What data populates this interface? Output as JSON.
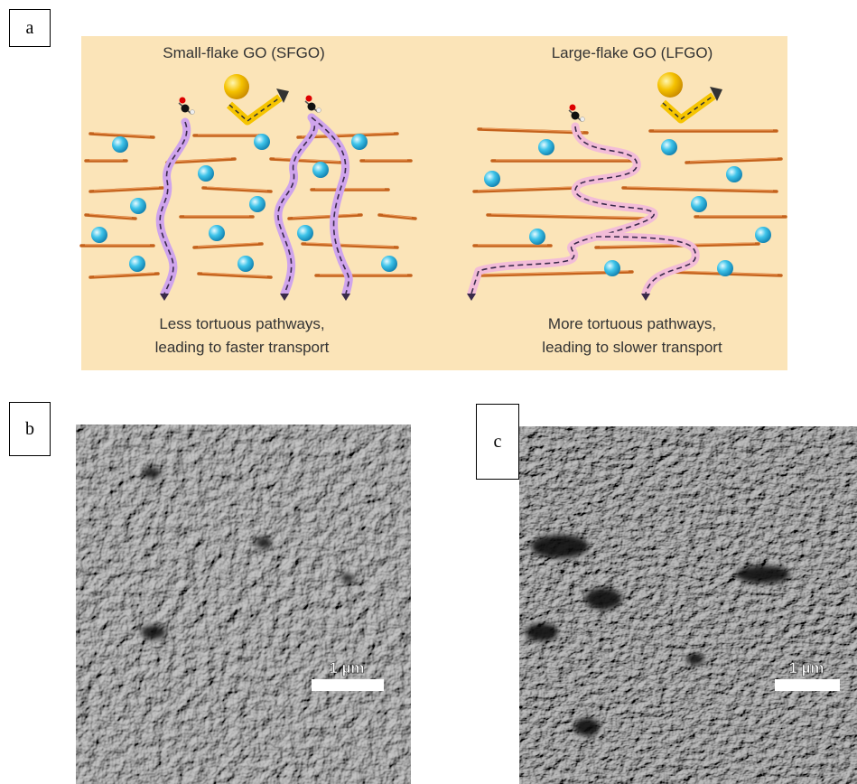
{
  "panel_a": {
    "label": "a",
    "left": {
      "title": "Small-flake GO (SFGO)",
      "caption": [
        "Less tortuous pathways,",
        "leading to faster transport"
      ]
    },
    "right": {
      "title": "Large-flake GO (LFGO)",
      "caption": [
        "More tortuous pathways,",
        "leading to slower transport"
      ]
    }
  },
  "panel_b": {
    "label": "b",
    "scale_bar": "1 µm"
  },
  "panel_c": {
    "label": "c",
    "scale_bar": "1 µm"
  }
}
